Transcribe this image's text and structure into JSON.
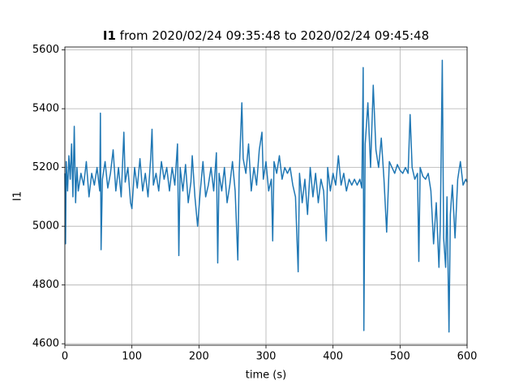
{
  "chart_data": {
    "type": "line",
    "title_bold": "I1",
    "title": "from 2020/02/24 09:35:48 to 2020/02/24 09:45:48",
    "x_label": "time (s)",
    "y_label": "I1",
    "xlim": [
      0,
      600
    ],
    "ylim": [
      4595,
      5610
    ],
    "xticks": [
      0,
      100,
      200,
      300,
      400,
      500,
      600
    ],
    "yticks": [
      4600,
      4800,
      5000,
      5200,
      5400,
      5600
    ],
    "grid": true,
    "x": [
      0,
      1,
      2,
      4,
      6,
      8,
      10,
      12,
      14,
      16,
      18,
      20,
      24,
      28,
      32,
      36,
      40,
      44,
      48,
      52,
      53,
      54,
      56,
      60,
      64,
      68,
      72,
      76,
      80,
      84,
      88,
      90,
      94,
      98,
      100,
      104,
      108,
      112,
      116,
      120,
      124,
      128,
      130,
      132,
      136,
      140,
      144,
      148,
      152,
      156,
      160,
      164,
      168,
      170,
      172,
      176,
      180,
      184,
      188,
      190,
      194,
      198,
      202,
      206,
      210,
      214,
      218,
      222,
      226,
      228,
      230,
      234,
      238,
      242,
      246,
      250,
      254,
      258,
      260,
      264,
      266,
      270,
      274,
      278,
      282,
      286,
      290,
      294,
      296,
      300,
      304,
      308,
      310,
      312,
      316,
      320,
      324,
      328,
      332,
      336,
      340,
      344,
      348,
      350,
      354,
      358,
      362,
      366,
      370,
      374,
      378,
      382,
      386,
      390,
      392,
      396,
      400,
      404,
      408,
      412,
      416,
      420,
      424,
      428,
      432,
      436,
      440,
      443,
      445,
      446,
      448,
      452,
      456,
      460,
      464,
      468,
      472,
      476,
      480,
      484,
      488,
      492,
      496,
      500,
      504,
      508,
      512,
      515,
      518,
      522,
      526,
      528,
      530,
      534,
      538,
      542,
      546,
      550,
      554,
      558,
      560,
      563,
      565,
      568,
      570,
      573,
      575,
      578,
      582,
      586,
      590,
      594,
      598,
      600
    ],
    "series": [
      {
        "name": "I1",
        "color": "#1f77b4",
        "values": [
          5180,
          4940,
          5220,
          5120,
          5240,
          5160,
          5280,
          5100,
          5340,
          5080,
          5200,
          5120,
          5180,
          5140,
          5220,
          5100,
          5180,
          5140,
          5200,
          5120,
          5385,
          4920,
          5160,
          5220,
          5130,
          5180,
          5260,
          5120,
          5200,
          5100,
          5320,
          5150,
          5200,
          5080,
          5060,
          5200,
          5130,
          5230,
          5120,
          5180,
          5100,
          5230,
          5330,
          5140,
          5180,
          5120,
          5220,
          5160,
          5200,
          5120,
          5200,
          5140,
          5280,
          4900,
          5200,
          5120,
          5210,
          5080,
          5150,
          5240,
          5100,
          5000,
          5120,
          5220,
          5100,
          5140,
          5200,
          5120,
          5250,
          4875,
          5180,
          5120,
          5200,
          5080,
          5140,
          5220,
          5120,
          4885,
          5180,
          5420,
          5230,
          5180,
          5280,
          5120,
          5200,
          5140,
          5260,
          5320,
          5160,
          5220,
          5120,
          5160,
          4950,
          5220,
          5180,
          5240,
          5160,
          5200,
          5180,
          5200,
          5140,
          5100,
          4845,
          5180,
          5080,
          5160,
          5040,
          5200,
          5100,
          5180,
          5080,
          5160,
          5120,
          4950,
          5200,
          5120,
          5180,
          5140,
          5240,
          5140,
          5180,
          5120,
          5160,
          5140,
          5160,
          5140,
          5160,
          5130,
          5540,
          4645,
          5280,
          5420,
          5200,
          5480,
          5260,
          5200,
          5300,
          5160,
          4980,
          5220,
          5200,
          5180,
          5210,
          5190,
          5180,
          5200,
          5180,
          5380,
          5200,
          5160,
          5180,
          4880,
          5200,
          5170,
          5160,
          5180,
          5120,
          4940,
          5080,
          4860,
          5000,
          5565,
          4960,
          4860,
          5100,
          4640,
          5040,
          5140,
          4960,
          5160,
          5220,
          5140,
          5160,
          5150
        ]
      }
    ]
  }
}
